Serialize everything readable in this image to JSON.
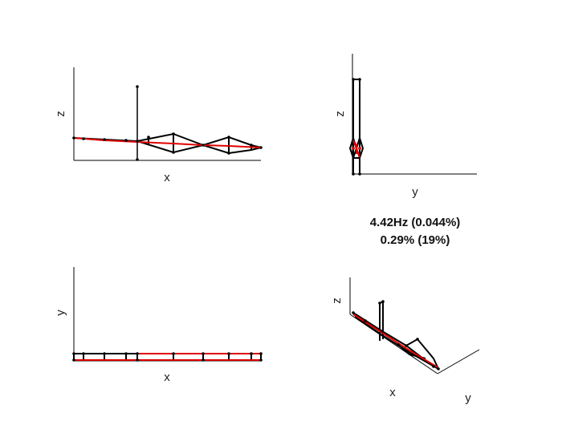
{
  "mode_info": {
    "frequency_line": "4.42Hz (0.044%)",
    "damping_line": "0.29% (19%)"
  },
  "views": {
    "xz": {
      "xlabel": "x",
      "ylabel": "z"
    },
    "yz": {
      "xlabel": "y",
      "ylabel": "z"
    },
    "xy": {
      "xlabel": "x",
      "ylabel": "y"
    },
    "iso": {
      "xlabel": "x",
      "ylabel": "y",
      "zlabel": "z"
    }
  },
  "colors": {
    "structure": "#000000",
    "mode_shape": "#e00000",
    "axis": "#000000"
  }
}
